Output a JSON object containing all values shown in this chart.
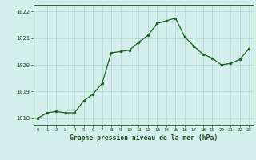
{
  "x": [
    0,
    1,
    2,
    3,
    4,
    5,
    6,
    7,
    8,
    9,
    10,
    11,
    12,
    13,
    14,
    15,
    16,
    17,
    18,
    19,
    20,
    21,
    22,
    23
  ],
  "y": [
    1018.0,
    1018.2,
    1018.25,
    1018.2,
    1018.2,
    1018.65,
    1018.9,
    1019.3,
    1020.45,
    1020.5,
    1020.55,
    1020.85,
    1021.1,
    1021.55,
    1021.65,
    1021.75,
    1021.05,
    1020.7,
    1020.4,
    1020.25,
    1020.0,
    1020.05,
    1020.2,
    1020.6
  ],
  "title": "Graphe pression niveau de la mer (hPa)",
  "bg_color": "#d4eeec",
  "line_color": "#1a6020",
  "marker_color": "#1a6020",
  "grid_color": "#a8d8d0",
  "text_color": "#1a4a1a",
  "ylim": [
    1017.75,
    1022.25
  ],
  "yticks": [
    1018,
    1019,
    1020,
    1021,
    1022
  ],
  "xlim": [
    -0.5,
    23.5
  ],
  "xticks": [
    0,
    1,
    2,
    3,
    4,
    5,
    6,
    7,
    8,
    9,
    10,
    11,
    12,
    13,
    14,
    15,
    16,
    17,
    18,
    19,
    20,
    21,
    22,
    23
  ]
}
